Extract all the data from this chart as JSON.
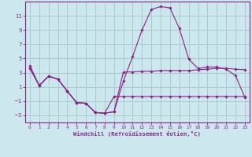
{
  "xlabel": "Windchill (Refroidissement éolien,°C)",
  "bg_color": "#cce8ee",
  "grid_color": "#aacccc",
  "line_color": "#882288",
  "xlim": [
    -0.5,
    23.5
  ],
  "ylim": [
    -4.0,
    13.0
  ],
  "yticks": [
    -3,
    -1,
    1,
    3,
    5,
    7,
    9,
    11
  ],
  "xticks": [
    0,
    1,
    2,
    3,
    4,
    5,
    6,
    7,
    8,
    9,
    10,
    11,
    12,
    13,
    14,
    15,
    16,
    17,
    18,
    19,
    20,
    21,
    22,
    23
  ],
  "line1_x": [
    0,
    1,
    2,
    3,
    4,
    5,
    6,
    7,
    8,
    9,
    10,
    11,
    12,
    13,
    14,
    15,
    16,
    17,
    18,
    19,
    20,
    21,
    22,
    23
  ],
  "line1_y": [
    4.0,
    1.2,
    2.5,
    2.1,
    0.4,
    -1.2,
    -1.3,
    -2.6,
    -2.7,
    -2.5,
    1.8,
    5.3,
    9.0,
    11.9,
    12.3,
    12.1,
    9.2,
    4.9,
    3.6,
    3.8,
    3.8,
    3.5,
    2.6,
    -0.45
  ],
  "line2_x": [
    0,
    1,
    2,
    3,
    4,
    5,
    6,
    7,
    8,
    9,
    10,
    11,
    12,
    13,
    14,
    15,
    16,
    17,
    18,
    19,
    20,
    21,
    22,
    23
  ],
  "line2_y": [
    3.6,
    1.2,
    2.5,
    2.1,
    0.4,
    -1.2,
    -1.3,
    -2.6,
    -2.7,
    -2.5,
    3.1,
    3.1,
    3.2,
    3.2,
    3.3,
    3.3,
    3.3,
    3.3,
    3.4,
    3.5,
    3.6,
    3.6,
    3.5,
    3.4
  ],
  "line3_x": [
    0,
    1,
    2,
    3,
    4,
    5,
    6,
    7,
    8,
    9,
    10,
    11,
    12,
    13,
    14,
    15,
    16,
    17,
    18,
    19,
    20,
    21,
    22,
    23
  ],
  "line3_y": [
    3.6,
    1.2,
    2.5,
    2.1,
    0.4,
    -1.2,
    -1.3,
    -2.6,
    -2.7,
    -0.35,
    -0.35,
    -0.35,
    -0.35,
    -0.35,
    -0.35,
    -0.35,
    -0.35,
    -0.35,
    -0.35,
    -0.35,
    -0.35,
    -0.35,
    -0.35,
    -0.35
  ]
}
